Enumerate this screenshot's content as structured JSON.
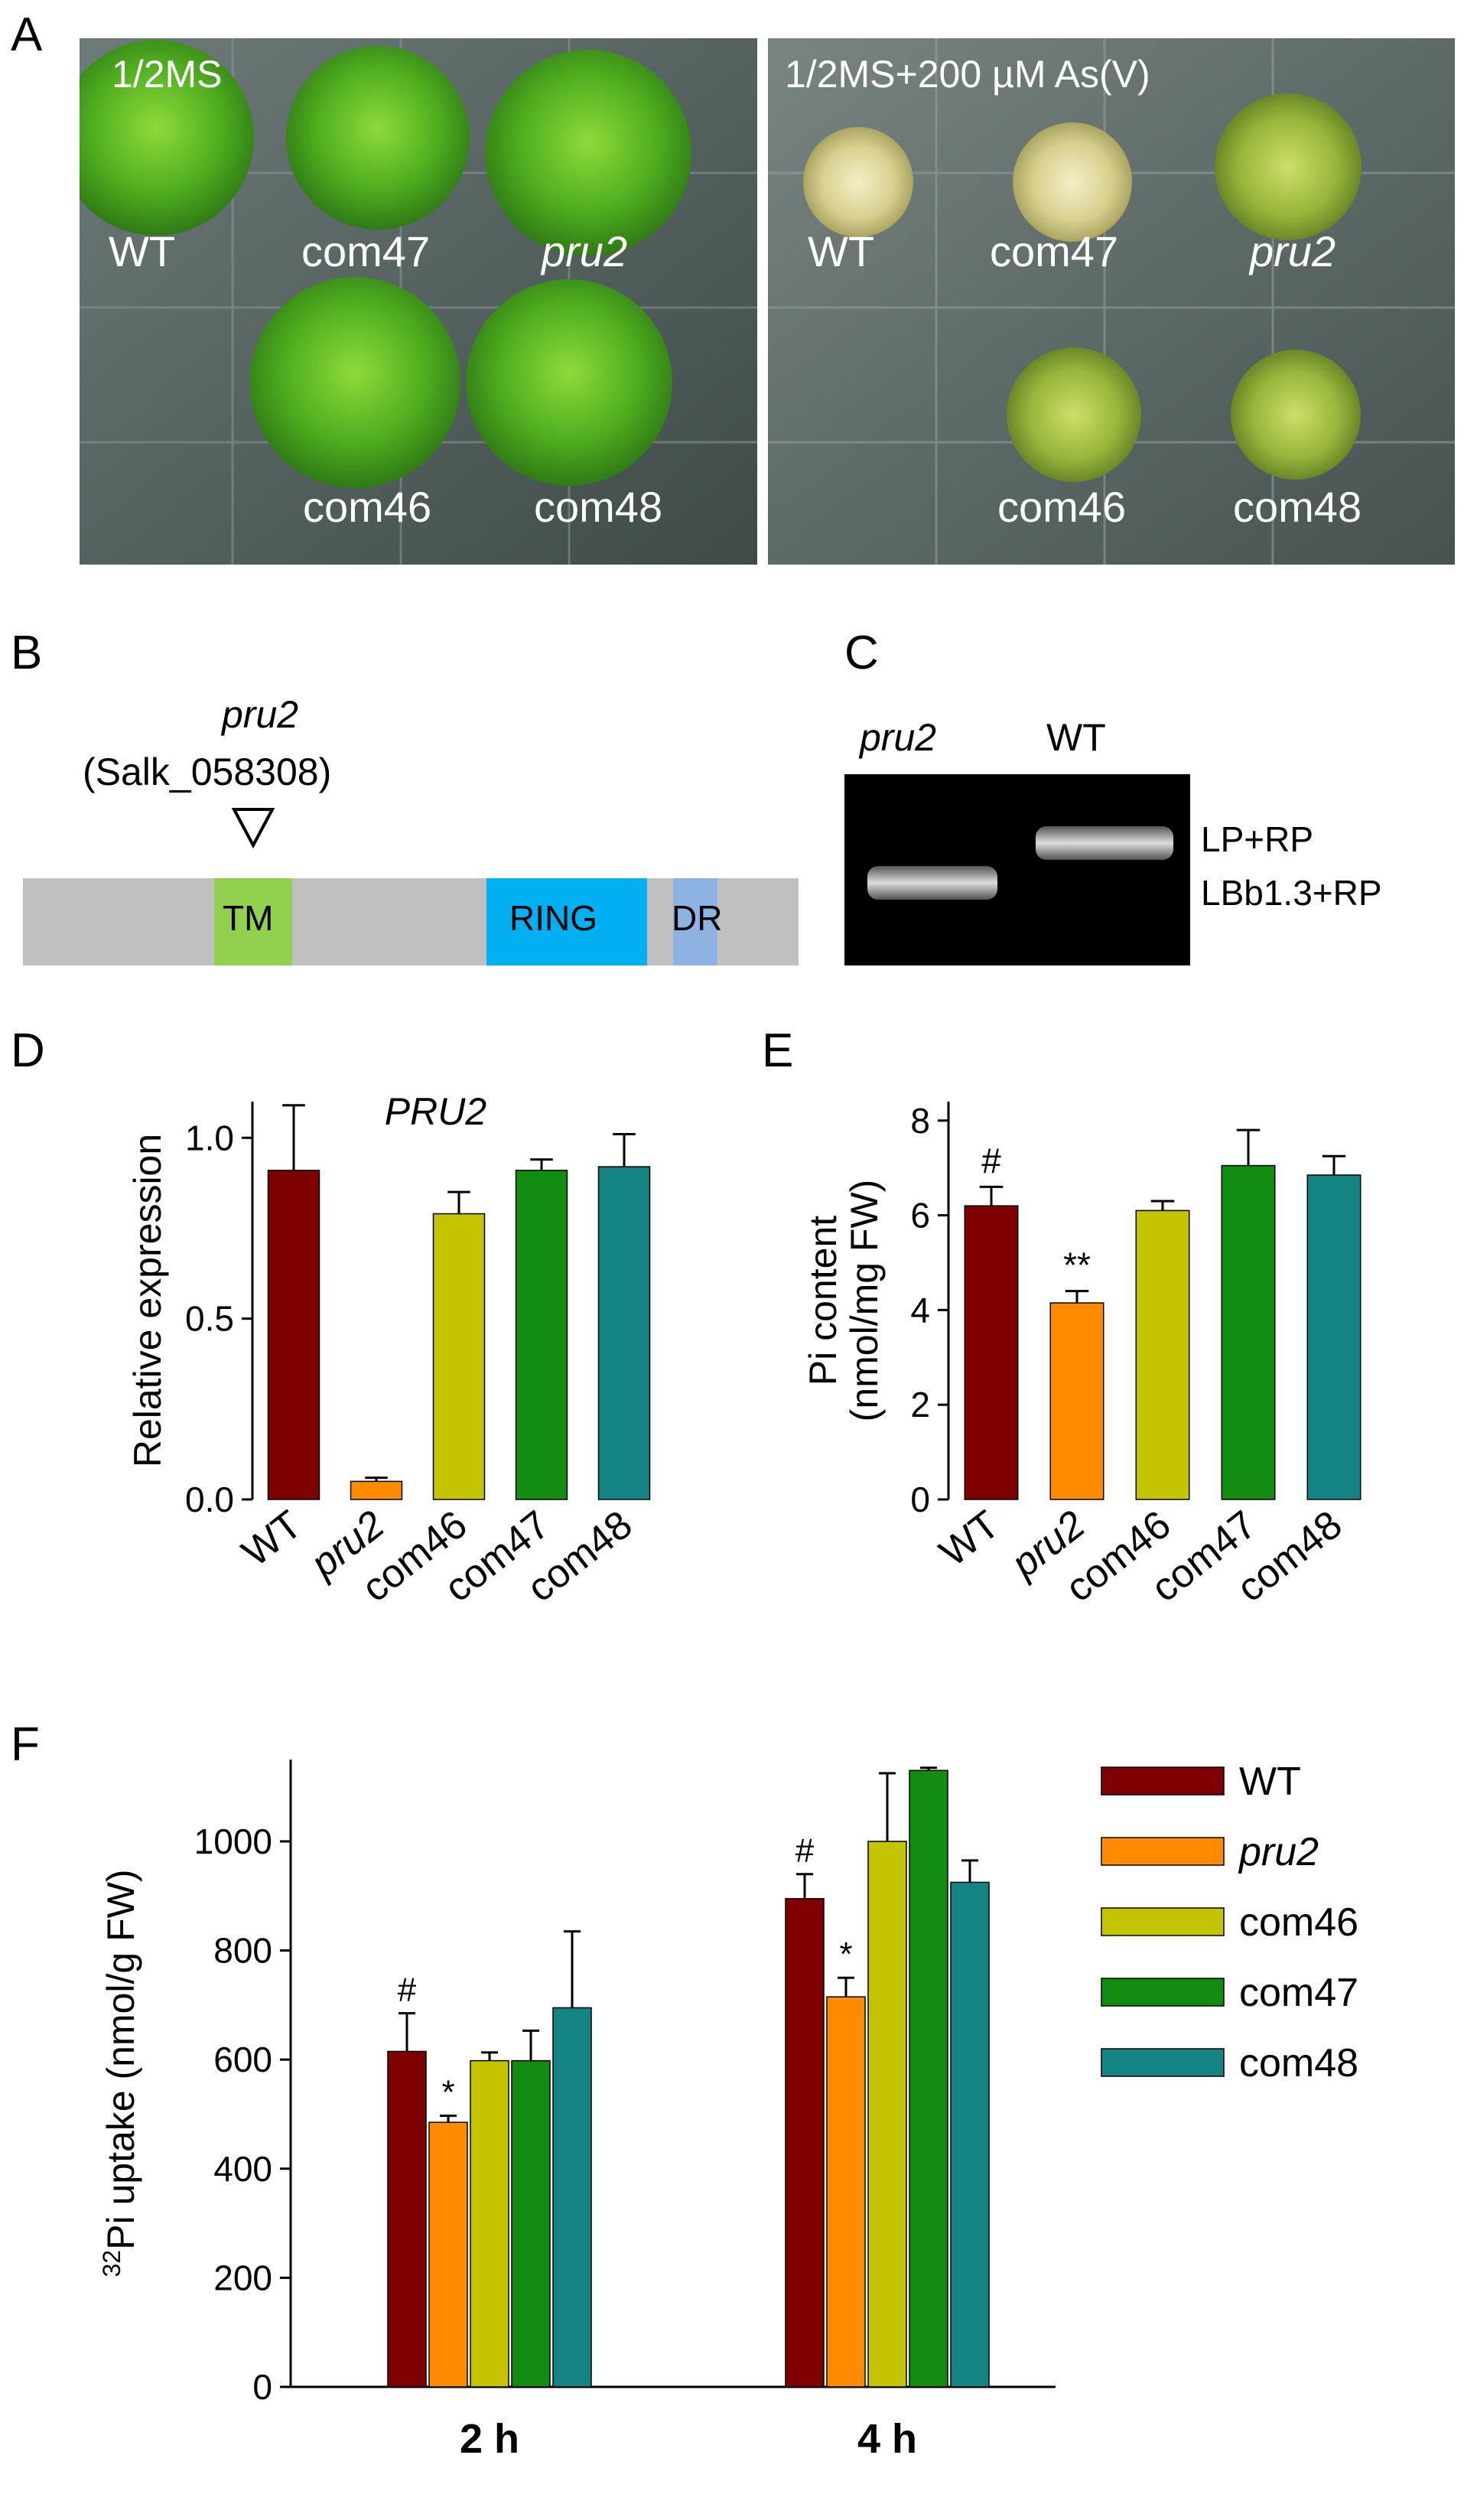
{
  "panel_labels": [
    "A",
    "B",
    "C",
    "D",
    "E",
    "F"
  ],
  "panelA": {
    "left": {
      "condition": "1/2MS",
      "labels": [
        "WT",
        "com47",
        "pru2",
        "com46",
        "com48"
      ]
    },
    "right": {
      "condition": "1/2MS+200 µM As(V)",
      "labels": [
        "WT",
        "com47",
        "pru2",
        "com46",
        "com48"
      ]
    }
  },
  "panelB": {
    "mutant": "pru2",
    "allele": "(Salk_058308)",
    "domains": [
      "TM",
      "RING",
      "DR"
    ],
    "colors": {
      "backbone": "#c0c0c0",
      "TM": "#92d050",
      "RING": "#00b0f0",
      "DR": "#8db3e2"
    }
  },
  "panelC": {
    "lanes": [
      "pru2",
      "WT"
    ],
    "bands": [
      "LP+RP",
      "LBb1.3+RP"
    ]
  },
  "chart_data": [
    {
      "panel": "D",
      "type": "bar",
      "title": "PRU2",
      "ylabel": "Relative expression",
      "categories": [
        "WT",
        "pru2",
        "com46",
        "com47",
        "com48"
      ],
      "values": [
        0.91,
        0.05,
        0.79,
        0.91,
        0.92
      ],
      "errors": [
        0.18,
        0.01,
        0.06,
        0.03,
        0.09
      ],
      "colors": [
        "#7f0000",
        "#ff8c00",
        "#c4c400",
        "#118c11",
        "#138383"
      ],
      "ylim": [
        0,
        1.1
      ],
      "yticks": [
        "0.0",
        "0.5",
        "1.0"
      ],
      "ytick_values": [
        0,
        0.5,
        1.0
      ]
    },
    {
      "panel": "E",
      "type": "bar",
      "ylabel": "Pi content\n(nmol/mg FW)",
      "categories": [
        "WT",
        "pru2",
        "com46",
        "com47",
        "com48"
      ],
      "values": [
        6.2,
        4.15,
        6.1,
        7.05,
        6.85
      ],
      "errors": [
        0.4,
        0.25,
        0.2,
        0.75,
        0.4
      ],
      "annotations": [
        "#",
        "**",
        "",
        "",
        ""
      ],
      "colors": [
        "#7f0000",
        "#ff8c00",
        "#c4c400",
        "#118c11",
        "#138383"
      ],
      "ylim": [
        0,
        8.4
      ],
      "yticks": [
        "0",
        "2",
        "4",
        "6",
        "8"
      ],
      "ytick_values": [
        0,
        2,
        4,
        6,
        8
      ]
    },
    {
      "panel": "F",
      "type": "bar",
      "ylabel": "32Pi uptake (nmol/g FW)",
      "categories": [
        "2 h",
        "4 h"
      ],
      "series": [
        {
          "name": "WT",
          "values": [
            615,
            895
          ],
          "errors": [
            70,
            45
          ],
          "annotations": [
            "#",
            "#"
          ],
          "color": "#7f0000"
        },
        {
          "name": "pru2",
          "values": [
            485,
            715
          ],
          "errors": [
            12,
            35
          ],
          "annotations": [
            "*",
            "*"
          ],
          "color": "#ff8c00"
        },
        {
          "name": "com46",
          "values": [
            598,
            1000
          ],
          "errors": [
            15,
            125
          ],
          "annotations": [
            "",
            ""
          ],
          "color": "#c4c400"
        },
        {
          "name": "com47",
          "values": [
            598,
            1130
          ],
          "errors": [
            55,
            5
          ],
          "annotations": [
            "",
            ""
          ],
          "color": "#118c11"
        },
        {
          "name": "com48",
          "values": [
            695,
            925
          ],
          "errors": [
            140,
            40
          ],
          "annotations": [
            "",
            ""
          ],
          "color": "#138383"
        }
      ],
      "ylim": [
        0,
        1150
      ],
      "yticks": [
        "0",
        "200",
        "400",
        "600",
        "800",
        "1000"
      ],
      "ytick_values": [
        0,
        200,
        400,
        600,
        800,
        1000
      ],
      "legend_position": "top-right"
    }
  ]
}
